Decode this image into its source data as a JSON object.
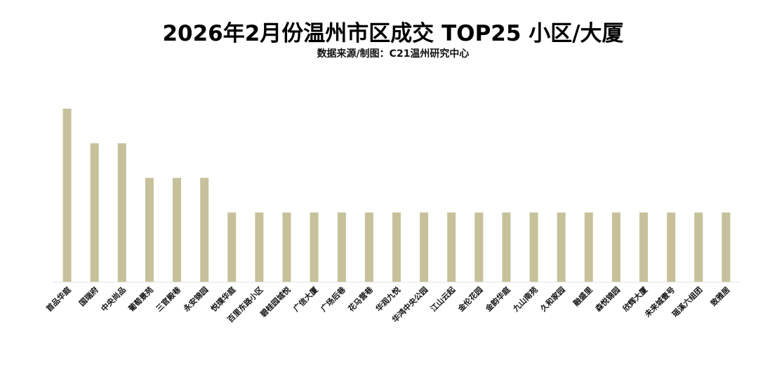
{
  "chart_data": {
    "type": "bar",
    "title": "2026年2月份温州市区成交 TOP25 小区/大厦",
    "subtitle": "数据来源/制图：C21温州研究中心",
    "xlabel": "",
    "ylabel": "",
    "ylim": [
      0,
      5
    ],
    "grid": false,
    "legend": "none",
    "bar_color": "#C6C19A",
    "categories": [
      "首品华庭",
      "国瑞府",
      "中央尚品",
      "葡萄景苑",
      "三官殿巷",
      "永安锦园",
      "悦璞华庭",
      "百里东路小区",
      "碧桂园城悦",
      "广信大厦",
      "广场后巷",
      "花马营巷",
      "华润九悦",
      "华鸿中央公园",
      "江山云起",
      "金伦花园",
      "金韵华庭",
      "九山南苑",
      "久和家园",
      "融盛里",
      "森悦锦园",
      "欣辉大厦",
      "未来城壹号",
      "瑶溪六组团",
      "致雅居"
    ],
    "values": [
      5,
      4,
      4,
      3,
      3,
      3,
      2,
      2,
      2,
      2,
      2,
      2,
      2,
      2,
      2,
      2,
      2,
      2,
      2,
      2,
      2,
      2,
      2,
      2,
      2
    ]
  }
}
